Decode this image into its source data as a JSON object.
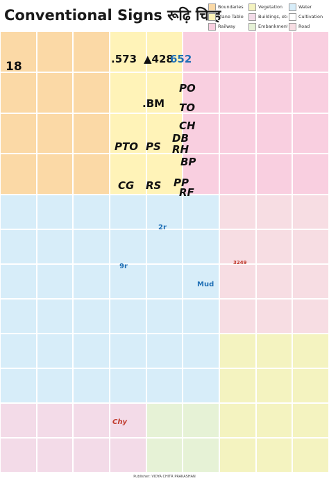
{
  "header": {
    "title": "Conventional Signs रूढ़ि चिन्ह"
  },
  "legend": [
    "Boundaries",
    "Vegetation",
    "Water",
    "Plane Table",
    "Buildings, etc.",
    "Cultivation",
    "Railway",
    "Embankment",
    "Road"
  ],
  "signs": [
    "18",
    ".573",
    "▲428",
    "652",
    "PO",
    ".BM",
    "TO",
    "CH",
    "DB",
    "PTO",
    "PS",
    "RH",
    "BP",
    "CG",
    "RS",
    "PP",
    "RF",
    "2r",
    "9r",
    "Mud",
    "3249",
    "Chy"
  ],
  "footer": "Publisher: VIDYA CHITR PRAKASHAN"
}
